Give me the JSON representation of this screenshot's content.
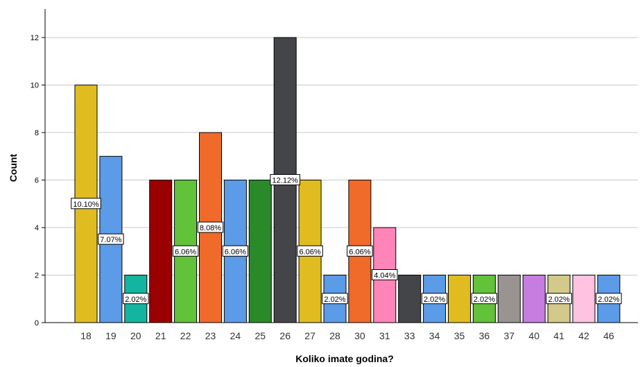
{
  "chart_data": {
    "type": "bar",
    "title": "",
    "xlabel": "Koliko imate godina?",
    "ylabel": "Count",
    "ylim": [
      0,
      13.2
    ],
    "yticks": [
      0,
      2,
      4,
      6,
      8,
      10,
      12
    ],
    "grid": true,
    "categories": [
      "18",
      "19",
      "20",
      "21",
      "22",
      "23",
      "24",
      "25",
      "26",
      "27",
      "28",
      "30",
      "31",
      "33",
      "34",
      "35",
      "36",
      "37",
      "40",
      "41",
      "42",
      "46"
    ],
    "values": [
      10,
      7,
      2,
      6,
      6,
      8,
      6,
      6,
      12,
      6,
      2,
      6,
      4,
      2,
      2,
      2,
      2,
      2,
      2,
      2,
      2,
      2
    ],
    "data_labels": [
      "10.10%",
      "7.07%",
      "2.02%",
      "",
      "6.06%",
      "8.08%",
      "6.06%",
      "",
      "12.12%",
      "6.06%",
      "2.02%",
      "6.06%",
      "4.04%",
      "",
      "2.02%",
      "",
      "2.02%",
      "",
      "",
      "2.02%",
      "",
      "2.02%"
    ],
    "colors": [
      "#e1bc20",
      "#5b9be8",
      "#14b5a0",
      "#9b0000",
      "#62c23a",
      "#f06a2a",
      "#5b9be8",
      "#2a8a2a",
      "#444548",
      "#e1bc20",
      "#5b9be8",
      "#f06a2a",
      "#ff85b8",
      "#444548",
      "#5b9be8",
      "#e1bc20",
      "#62c23a",
      "#999391",
      "#c77de0",
      "#d2c98a",
      "#ffc2e0",
      "#5b9be8"
    ]
  }
}
